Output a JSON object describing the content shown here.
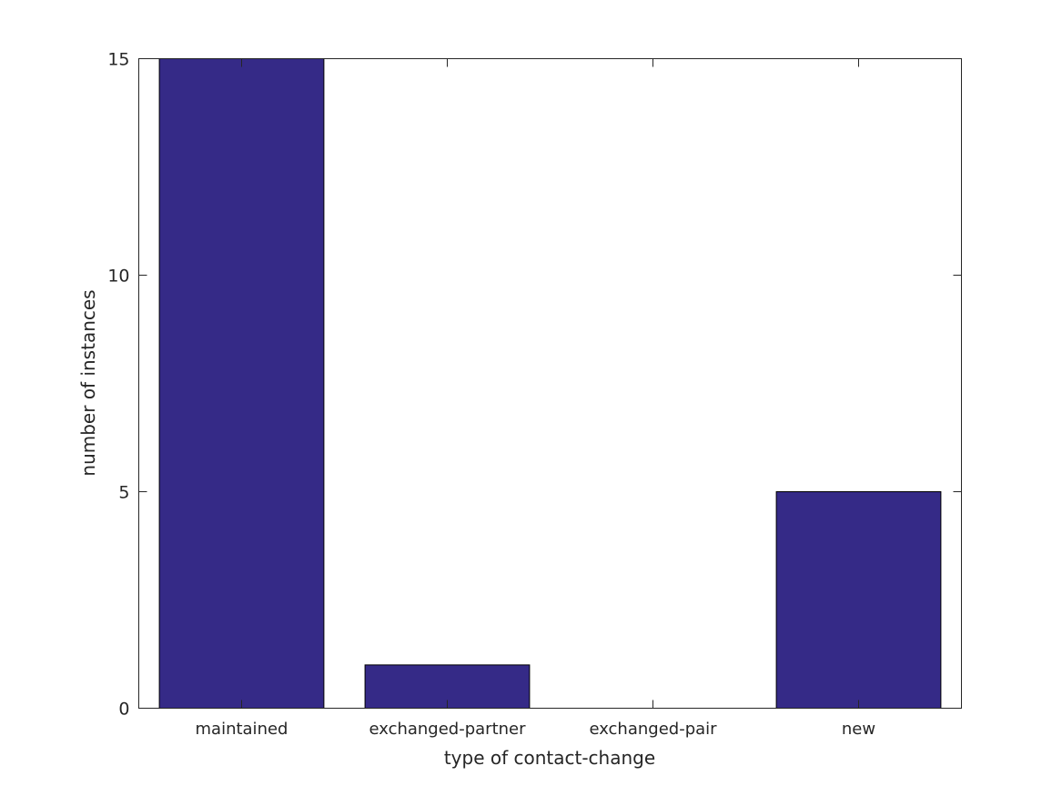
{
  "chart_data": {
    "type": "bar",
    "categories": [
      "maintained",
      "exchanged-partner",
      "exchanged-pair",
      "new"
    ],
    "values": [
      15,
      1,
      0,
      5
    ],
    "title": "",
    "xlabel": "type of contact-change",
    "ylabel": "number of instances",
    "ylim": [
      0,
      15
    ],
    "yticks": [
      0,
      5,
      10,
      15
    ],
    "grid": false,
    "bar_color": "#352a87"
  }
}
